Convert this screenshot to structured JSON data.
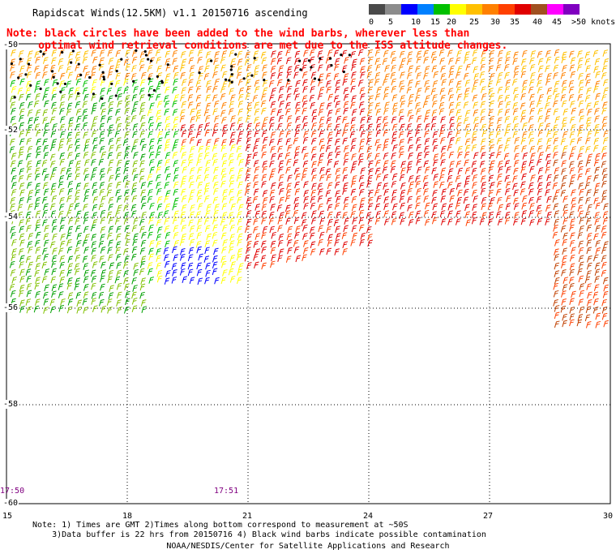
{
  "title": "Rapidscat Winds(12.5KM) v1.1 20150716 ascending",
  "note_lines": [
    "Note: black circles have been added to the wind barbs, wherever less than",
    "     optimal wind retrieval conditions are met due to the ISS altitude changes."
  ],
  "color_scale": {
    "swatches": [
      "#4a4a4a",
      "#8c8c8c",
      "#0000ff",
      "#0080ff",
      "#00c000",
      "#ffff00",
      "#ffc000",
      "#ff8000",
      "#ff4000",
      "#e00000",
      "#a05020",
      "#ff00ff",
      "#8000c0"
    ],
    "labels": [
      "0",
      "5",
      "10",
      "15",
      "20",
      "25",
      "30",
      "35",
      "40",
      "45",
      ">50 knots"
    ]
  },
  "lat_labels": [
    "-50",
    "-52",
    "-54",
    "-56",
    "-58",
    "-60"
  ],
  "lon_labels": [
    "15",
    "18",
    "21",
    "24",
    "27",
    "30"
  ],
  "pass_times": [
    "17:50",
    "17:51"
  ],
  "footer_lines": [
    "Note: 1) Times are GMT 2)Times along bottom correspond to measurement at ~50S",
    "    3)Data buffer is 22 hrs from 20150716 4) Black wind barbs indicate possible contamination"
  ],
  "credit": "NOAA/NESDIS/Center for Satellite Applications and Research"
}
